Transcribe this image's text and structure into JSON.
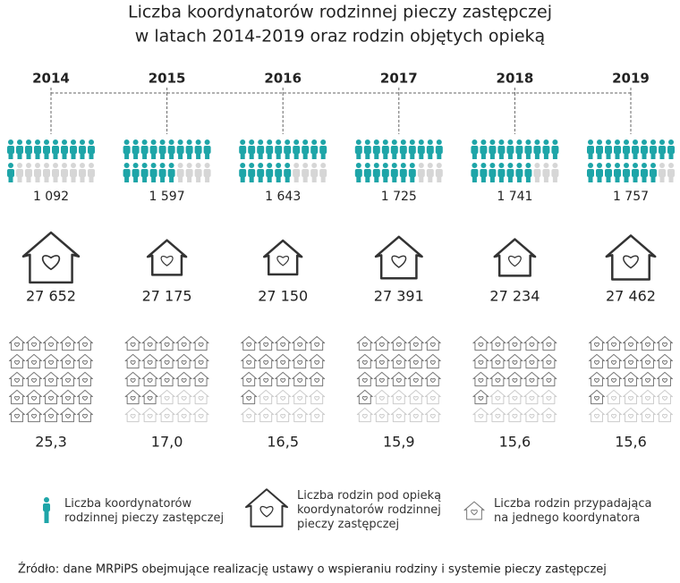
{
  "chart_data": {
    "type": "pictogram",
    "title": [
      "Liczba koordynatorów rodzinnej pieczy zastępczej",
      "w latach 2014-2019 oraz rodzin objętych opieką"
    ],
    "categories": [
      "2014",
      "2015",
      "2016",
      "2017",
      "2018",
      "2019"
    ],
    "series": [
      {
        "name": "Liczba koordynatorów rodzinnej pieczy zastępczej",
        "color": "#1ea5a8",
        "values": [
          1092,
          1597,
          1643,
          1725,
          1741,
          1757
        ],
        "value_labels": [
          "1 092",
          "1 597",
          "1 643",
          "1 725",
          "1 741",
          "1 757"
        ]
      },
      {
        "name": "Liczba rodzin pod opieką koordynatorów rodzinnej pieczy zastępczej",
        "color": "#333333",
        "values": [
          27652,
          27175,
          27150,
          27391,
          27234,
          27462
        ],
        "value_labels": [
          "27 652",
          "27 175",
          "27 150",
          "27 391",
          "27 234",
          "27 462"
        ]
      },
      {
        "name": "Liczba rodzin przypadająca na jednego koordynatora",
        "color": "#777777",
        "values": [
          25.3,
          17.0,
          16.5,
          15.9,
          15.6,
          15.6
        ],
        "value_labels": [
          "25,3",
          "17,0",
          "16,5",
          "15,9",
          "15,6",
          "15,6"
        ]
      }
    ],
    "source": "Źródło: dane MRPiPS obejmujące realizację ustawy o wspieraniu rodziny i systemie pieczy zastępczej"
  }
}
